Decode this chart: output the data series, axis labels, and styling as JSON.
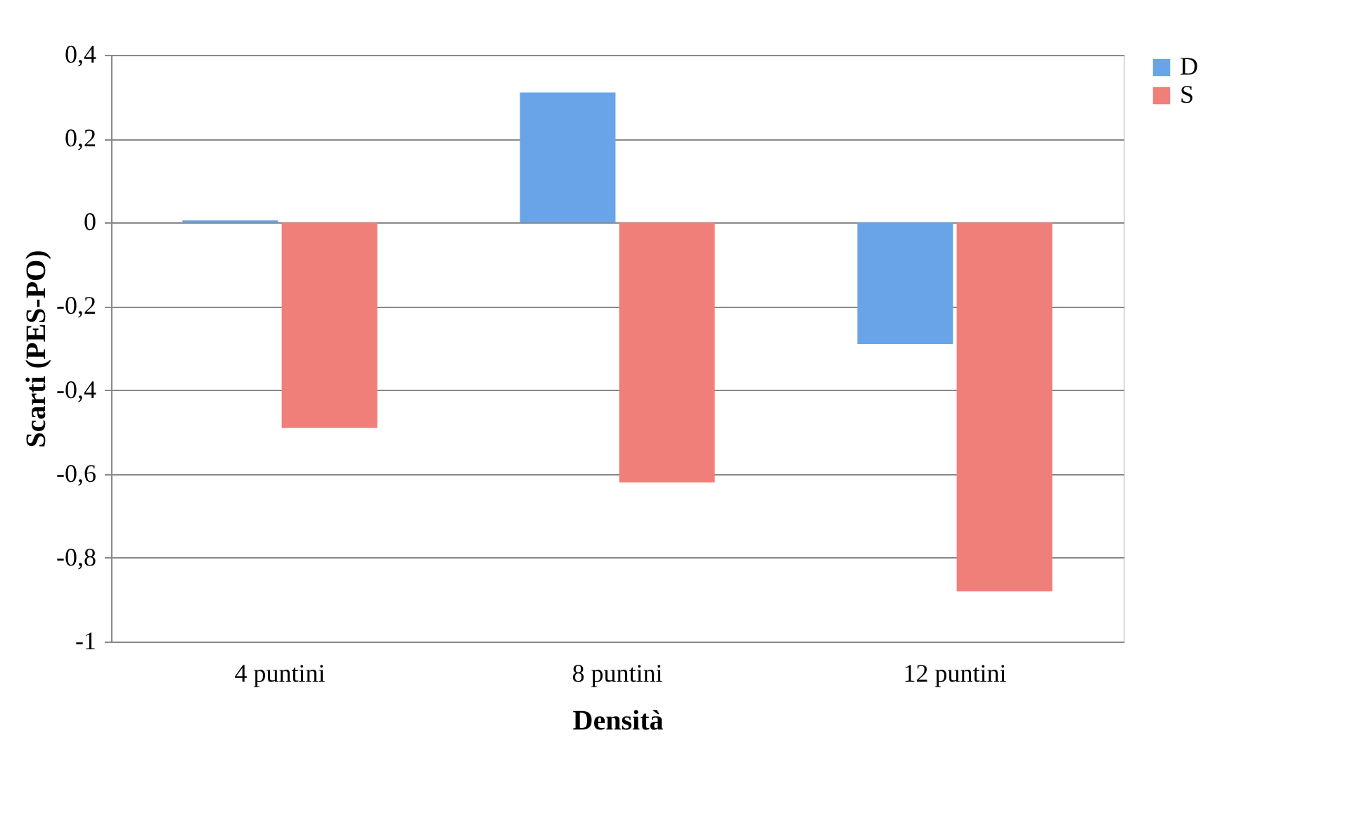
{
  "chart_data": {
    "type": "bar",
    "xlabel": "Densità",
    "ylabel": "Scarti (PES-PO)",
    "categories": [
      "4 puntini",
      "8 puntini",
      "12 puntini"
    ],
    "series": [
      {
        "name": "D",
        "color": "#6aa4e8",
        "values": [
          0.005,
          0.31,
          -0.29
        ]
      },
      {
        "name": "S",
        "color": "#f07f7a",
        "values": [
          -0.49,
          -0.62,
          -0.88
        ]
      }
    ],
    "ylim": [
      -1,
      0.4
    ],
    "yticks": [
      {
        "value": -1,
        "label": "-1"
      },
      {
        "value": -0.8,
        "label": "-0,8"
      },
      {
        "value": -0.6,
        "label": "-0,6"
      },
      {
        "value": -0.4,
        "label": "-0,4"
      },
      {
        "value": -0.2,
        "label": "-0,2"
      },
      {
        "value": 0,
        "label": "0"
      },
      {
        "value": 0.2,
        "label": "0,2"
      },
      {
        "value": 0.4,
        "label": "0,4"
      }
    ],
    "grid": "y",
    "legend": "right"
  }
}
